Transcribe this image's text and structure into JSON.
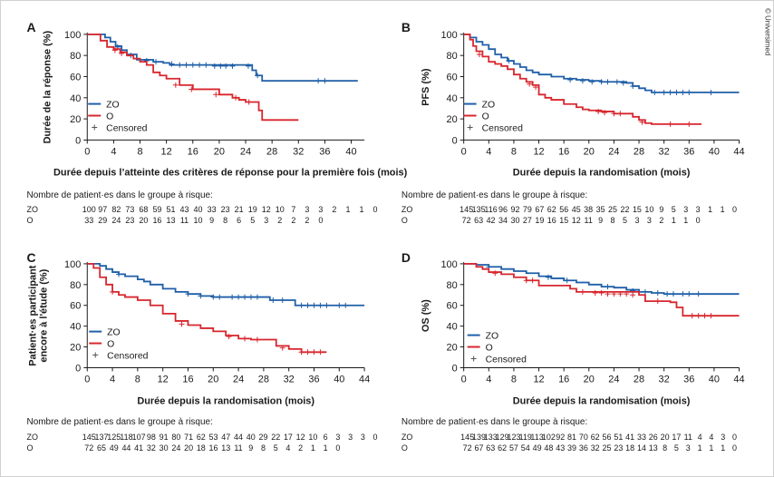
{
  "copyright": "© Universimed",
  "colors": {
    "zo": "#1f5fa8",
    "o": "#d7262d",
    "axis": "#1a1a1a"
  },
  "legend_labels": {
    "zo": "ZO",
    "o": "O",
    "censored": "Censored"
  },
  "chart_data": [
    {
      "type": "line",
      "panel_label": "A",
      "ylabel": "Durée de la réponse (%)",
      "ylabel_lines": [
        "Durée de la réponse (%)"
      ],
      "xlabel": "Durée depuis l’atteinte des critères de réponse pour la première fois (mois)",
      "xlim": [
        0,
        42
      ],
      "ylim": [
        0,
        100
      ],
      "xticks": [
        "0",
        "4",
        "8",
        "12",
        "16",
        "20",
        "24",
        "28",
        "32",
        "36",
        "40"
      ],
      "yticks": [
        "0",
        "20",
        "40",
        "60",
        "80",
        "100"
      ],
      "risk_title": "Nombre de patient·es dans le groupe à risque:",
      "risk_labels": [
        "ZO",
        "O"
      ],
      "risk_zo": [
        "100",
        "97",
        "82",
        "73",
        "68",
        "59",
        "51",
        "43",
        "40",
        "33",
        "23",
        "21",
        "19",
        "12",
        "10",
        "7",
        "3",
        "3",
        "2",
        "1",
        "1",
        "0"
      ],
      "risk_o": [
        "33",
        "29",
        "24",
        "23",
        "20",
        "16",
        "13",
        "11",
        "10",
        "9",
        "8",
        "6",
        "5",
        "3",
        "2",
        "2",
        "2",
        "0"
      ],
      "series": [
        {
          "name": "ZO",
          "x": [
            0,
            2,
            2.7,
            3.5,
            4.3,
            5.2,
            6,
            7.5,
            10,
            11.5,
            12.5,
            13.2,
            24,
            25,
            25.6,
            26.5,
            41
          ],
          "y": [
            100,
            100,
            97,
            93,
            89,
            85,
            81,
            76,
            74,
            73,
            71,
            71,
            71,
            66,
            61,
            56,
            56
          ],
          "censored": [
            [
              4.6,
              88
            ],
            [
              6.6,
              80
            ],
            [
              9,
              75
            ],
            [
              10.4,
              74
            ],
            [
              12.8,
              72
            ],
            [
              14,
              71
            ],
            [
              15,
              71
            ],
            [
              16,
              71
            ],
            [
              17,
              71
            ],
            [
              18,
              71
            ],
            [
              19.3,
              70
            ],
            [
              20.2,
              70
            ],
            [
              21,
              70
            ],
            [
              22,
              70
            ],
            [
              24.4,
              70
            ],
            [
              25.8,
              61
            ],
            [
              35,
              56
            ],
            [
              36,
              56
            ]
          ]
        },
        {
          "name": "O",
          "x": [
            0,
            2,
            3,
            4,
            5,
            6,
            7,
            8,
            9,
            10,
            11,
            12,
            14,
            16,
            20,
            22,
            23,
            24,
            26,
            26.5,
            32
          ],
          "y": [
            100,
            94,
            88,
            86,
            83,
            80,
            77,
            74,
            71,
            64,
            61,
            58,
            52,
            48,
            43,
            40,
            38,
            36,
            28,
            19,
            19
          ],
          "censored": [
            [
              4.2,
              85
            ],
            [
              5.2,
              82
            ],
            [
              13.4,
              52
            ],
            [
              15.8,
              48
            ],
            [
              19.5,
              43
            ],
            [
              22.5,
              40
            ],
            [
              24.5,
              36
            ]
          ]
        }
      ]
    },
    {
      "type": "line",
      "panel_label": "B",
      "ylabel": "PFS (%)",
      "ylabel_lines": [
        "PFS (%)"
      ],
      "xlabel": "Durée depuis la randomisation (mois)",
      "xlim": [
        0,
        44
      ],
      "ylim": [
        0,
        100
      ],
      "xticks": [
        "0",
        "4",
        "8",
        "12",
        "16",
        "20",
        "24",
        "28",
        "32",
        "36",
        "40",
        "44"
      ],
      "yticks": [
        "0",
        "20",
        "40",
        "60",
        "80",
        "100"
      ],
      "risk_title": "Nombre de patient·es dans le groupe à risque:",
      "risk_labels": [
        "ZO",
        "O"
      ],
      "risk_zo": [
        "145",
        "135",
        "116",
        "96",
        "92",
        "79",
        "67",
        "62",
        "56",
        "45",
        "38",
        "35",
        "25",
        "22",
        "15",
        "10",
        "9",
        "5",
        "3",
        "3",
        "1",
        "1",
        "0"
      ],
      "risk_o": [
        "72",
        "63",
        "42",
        "34",
        "30",
        "27",
        "19",
        "16",
        "15",
        "12",
        "11",
        "9",
        "8",
        "5",
        "3",
        "3",
        "2",
        "1",
        "1",
        "0"
      ],
      "series": [
        {
          "name": "ZO",
          "x": [
            0,
            1,
            2,
            3,
            4,
            5,
            6,
            7,
            8,
            9,
            10,
            11,
            12,
            14,
            16,
            18,
            20,
            22,
            24,
            26,
            27,
            28,
            29,
            30,
            44
          ],
          "y": [
            100,
            97,
            93,
            90,
            86,
            81,
            78,
            75,
            72,
            69,
            66,
            64,
            62,
            60,
            58,
            57,
            56,
            55,
            55,
            54,
            51,
            49,
            47,
            45,
            45
          ],
          "censored": [
            [
              7.2,
              75
            ],
            [
              17,
              57
            ],
            [
              19,
              56
            ],
            [
              20.5,
              55
            ],
            [
              22,
              55
            ],
            [
              23,
              55
            ],
            [
              24.5,
              55
            ],
            [
              25.5,
              54
            ],
            [
              27,
              51
            ],
            [
              30.5,
              45
            ],
            [
              32,
              45
            ],
            [
              33,
              45
            ],
            [
              34,
              45
            ],
            [
              35,
              45
            ],
            [
              36,
              45
            ],
            [
              39.5,
              45
            ]
          ]
        },
        {
          "name": "O",
          "x": [
            0,
            1,
            1.5,
            2,
            3,
            4,
            5,
            6,
            7,
            8,
            9,
            10,
            11,
            12,
            13,
            14,
            16,
            18,
            19,
            20,
            22,
            24,
            26,
            27,
            28,
            29,
            30,
            38
          ],
          "y": [
            100,
            95,
            89,
            84,
            79,
            74,
            72,
            70,
            67,
            62,
            58,
            55,
            52,
            43,
            40,
            38,
            34,
            31,
            29,
            28,
            27,
            25,
            25,
            22,
            19,
            16,
            15,
            15
          ],
          "censored": [
            [
              2.5,
              81
            ],
            [
              10.5,
              53
            ],
            [
              11.5,
              50
            ],
            [
              21.5,
              27
            ],
            [
              22.5,
              26
            ],
            [
              24,
              25
            ],
            [
              25,
              25
            ],
            [
              28.5,
              17
            ],
            [
              33,
              15
            ],
            [
              36,
              15
            ]
          ]
        }
      ]
    },
    {
      "type": "line",
      "panel_label": "C",
      "ylabel": "Patient·es participant encore à l'étude (%)",
      "ylabel_lines": [
        "Patient·es participant",
        "encore à l'étude (%)"
      ],
      "xlabel": "Durée depuis la randomisation (mois)",
      "xlim": [
        0,
        44
      ],
      "ylim": [
        0,
        100
      ],
      "xticks": [
        "0",
        "4",
        "8",
        "12",
        "16",
        "20",
        "24",
        "28",
        "32",
        "36",
        "40",
        "44"
      ],
      "yticks": [
        "0",
        "20",
        "40",
        "60",
        "80",
        "100"
      ],
      "risk_title": "Nombre de patient·es dans le groupe à risque:",
      "risk_labels": [
        "ZO",
        "O"
      ],
      "risk_zo": [
        "145",
        "137",
        "125",
        "118",
        "107",
        "98",
        "91",
        "80",
        "71",
        "62",
        "53",
        "47",
        "44",
        "40",
        "29",
        "22",
        "17",
        "12",
        "10",
        "6",
        "3",
        "3",
        "3",
        "0"
      ],
      "risk_o": [
        "72",
        "65",
        "49",
        "44",
        "41",
        "32",
        "30",
        "24",
        "20",
        "18",
        "16",
        "13",
        "11",
        "9",
        "8",
        "5",
        "4",
        "2",
        "1",
        "1",
        "0"
      ],
      "series": [
        {
          "name": "ZO",
          "x": [
            0,
            2,
            3,
            4,
            5,
            6,
            8,
            9,
            10,
            12,
            14,
            16,
            18,
            20,
            28,
            29,
            33,
            44
          ],
          "y": [
            100,
            98,
            95,
            92,
            90,
            88,
            85,
            83,
            80,
            76,
            73,
            71,
            69,
            68,
            68,
            65,
            60,
            60
          ],
          "censored": [
            [
              5,
              90
            ],
            [
              16,
              71
            ],
            [
              18,
              69
            ],
            [
              20,
              68
            ],
            [
              21,
              68
            ],
            [
              23,
              68
            ],
            [
              24,
              68
            ],
            [
              25,
              68
            ],
            [
              26,
              68
            ],
            [
              27,
              68
            ],
            [
              29.5,
              65
            ],
            [
              31,
              65
            ],
            [
              34,
              60
            ],
            [
              35,
              60
            ],
            [
              36,
              60
            ],
            [
              37,
              60
            ],
            [
              38,
              60
            ],
            [
              40,
              60
            ],
            [
              41,
              60
            ]
          ]
        },
        {
          "name": "O",
          "x": [
            0,
            1,
            2,
            3,
            4,
            5,
            6,
            8,
            10,
            12,
            14,
            16,
            18,
            20,
            22,
            24,
            26,
            28,
            30,
            32,
            34,
            38
          ],
          "y": [
            100,
            96,
            87,
            80,
            73,
            70,
            68,
            65,
            60,
            52,
            45,
            41,
            38,
            35,
            31,
            28,
            27,
            27,
            21,
            18,
            15,
            15
          ],
          "censored": [
            [
              4,
              73
            ],
            [
              15,
              42
            ],
            [
              22.5,
              30
            ],
            [
              25,
              28
            ],
            [
              27,
              27
            ],
            [
              31,
              19
            ],
            [
              34,
              15
            ],
            [
              35,
              15
            ],
            [
              36,
              15
            ],
            [
              37,
              15
            ]
          ]
        }
      ]
    },
    {
      "type": "line",
      "panel_label": "D",
      "ylabel": "OS (%)",
      "ylabel_lines": [
        "OS (%)"
      ],
      "xlabel": "Durée depuis la randomisation (mois)",
      "xlim": [
        0,
        44
      ],
      "ylim": [
        0,
        100
      ],
      "xticks": [
        "0",
        "4",
        "8",
        "12",
        "16",
        "20",
        "24",
        "28",
        "32",
        "36",
        "40",
        "44"
      ],
      "yticks": [
        "0",
        "20",
        "40",
        "60",
        "80",
        "100"
      ],
      "risk_title": "Nombre de patient·es dans le groupe à risque:",
      "risk_labels": [
        "ZO",
        "O"
      ],
      "risk_zo": [
        "145",
        "139",
        "133",
        "129",
        "123",
        "119",
        "113",
        "102",
        "92",
        "81",
        "70",
        "62",
        "56",
        "51",
        "41",
        "33",
        "26",
        "20",
        "17",
        "11",
        "4",
        "4",
        "3",
        "0"
      ],
      "risk_o": [
        "72",
        "67",
        "63",
        "62",
        "57",
        "54",
        "49",
        "48",
        "43",
        "39",
        "36",
        "32",
        "25",
        "23",
        "18",
        "14",
        "13",
        "8",
        "5",
        "3",
        "1",
        "1",
        "1",
        "0"
      ],
      "series": [
        {
          "name": "ZO",
          "x": [
            0,
            2,
            4,
            6,
            8,
            10,
            12,
            14,
            16,
            18,
            20,
            22,
            24,
            26,
            28,
            30,
            32,
            44
          ],
          "y": [
            100,
            99,
            97,
            95,
            93,
            91,
            88,
            86,
            84,
            82,
            80,
            78,
            77,
            75,
            73,
            72,
            71,
            71
          ],
          "censored": [
            [
              4,
              97
            ],
            [
              13.5,
              87
            ],
            [
              16.5,
              84
            ],
            [
              23,
              78
            ],
            [
              27,
              74
            ],
            [
              28,
              73
            ],
            [
              29,
              73
            ],
            [
              31,
              72
            ],
            [
              32.5,
              71
            ],
            [
              33.5,
              71
            ],
            [
              35,
              71
            ],
            [
              36,
              71
            ],
            [
              37.5,
              71
            ]
          ]
        },
        {
          "name": "O",
          "x": [
            0,
            2,
            3,
            4,
            6,
            8,
            10,
            12,
            16,
            17,
            18,
            20,
            28,
            29,
            33,
            34,
            35,
            44
          ],
          "y": [
            100,
            97,
            95,
            92,
            90,
            87,
            84,
            79,
            79,
            76,
            73,
            73,
            70,
            64,
            63,
            58,
            50,
            50
          ],
          "censored": [
            [
              5,
              91
            ],
            [
              10,
              84
            ],
            [
              11,
              84
            ],
            [
              19,
              73
            ],
            [
              21,
              72
            ],
            [
              22,
              72
            ],
            [
              23,
              71
            ],
            [
              24,
              71
            ],
            [
              25,
              71
            ],
            [
              26,
              71
            ],
            [
              27,
              70
            ],
            [
              31,
              64
            ],
            [
              36.5,
              50
            ],
            [
              37.5,
              50
            ],
            [
              38.5,
              50
            ],
            [
              39.5,
              50
            ]
          ]
        }
      ]
    }
  ]
}
